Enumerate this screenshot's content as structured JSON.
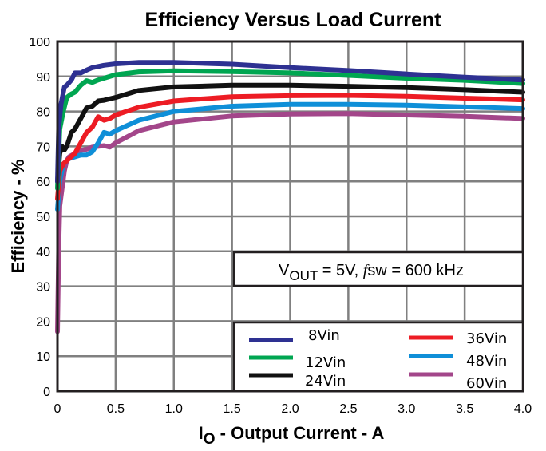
{
  "chart_data": {
    "type": "line",
    "title": "Efficiency Versus Load Current",
    "xlabel_main": "I",
    "xlabel_sub": "O",
    "xlabel_rest": " - Output Current - A",
    "ylabel": "Efficiency - %",
    "xlim": [
      0,
      4.0
    ],
    "ylim": [
      0,
      100
    ],
    "xticks": [
      "0",
      "0.5",
      "1.0",
      "1.5",
      "2.0",
      "2.5",
      "3.0",
      "3.5",
      "4.0"
    ],
    "yticks": [
      "0",
      "10",
      "20",
      "30",
      "40",
      "50",
      "60",
      "70",
      "80",
      "90",
      "100"
    ],
    "grid": true,
    "annotation": {
      "v": "V",
      "v_sub": "OUT",
      "rest": " = 5V, ",
      "f": "f",
      "sw": "sw = 600 kHz"
    },
    "legend_position": "bottom-right",
    "series": [
      {
        "name": "8Vin",
        "color": "#2e3192",
        "x": [
          0,
          0.01,
          0.03,
          0.06,
          0.08,
          0.12,
          0.15,
          0.2,
          0.25,
          0.3,
          0.4,
          0.5,
          0.7,
          1.0,
          1.5,
          2.0,
          2.5,
          3.0,
          3.5,
          4.0
        ],
        "y": [
          60,
          75,
          82,
          87,
          87.5,
          89,
          91,
          91,
          91.8,
          92.5,
          93.2,
          93.6,
          94,
          94,
          93.5,
          92.5,
          91.7,
          90.7,
          89.8,
          89
        ]
      },
      {
        "name": "12Vin",
        "color": "#00a651",
        "x": [
          0,
          0.02,
          0.05,
          0.08,
          0.12,
          0.15,
          0.2,
          0.25,
          0.3,
          0.35,
          0.4,
          0.5,
          0.7,
          1.0,
          1.5,
          2.0,
          2.5,
          3.0,
          3.5,
          4.0
        ],
        "y": [
          58,
          75,
          80,
          84,
          85,
          85.5,
          87.5,
          88.8,
          88.3,
          89,
          89.5,
          90.5,
          91.3,
          91.6,
          91.4,
          91,
          90.3,
          89.5,
          88.9,
          88
        ]
      },
      {
        "name": "24Vin",
        "color": "#111111",
        "x": [
          0,
          0.02,
          0.04,
          0.06,
          0.08,
          0.1,
          0.12,
          0.15,
          0.2,
          0.25,
          0.3,
          0.35,
          0.4,
          0.5,
          0.7,
          1.0,
          1.5,
          2.0,
          2.5,
          3.0,
          3.5,
          4.0
        ],
        "y": [
          60,
          68,
          70,
          69,
          70,
          72,
          74,
          75,
          78,
          81,
          81.5,
          83,
          83.2,
          84,
          86,
          87,
          87.5,
          87.5,
          87.2,
          86.8,
          86.2,
          85.5
        ]
      },
      {
        "name": "36Vin",
        "color": "#ed1c24",
        "x": [
          0,
          0.02,
          0.05,
          0.1,
          0.15,
          0.2,
          0.25,
          0.3,
          0.35,
          0.4,
          0.45,
          0.5,
          0.7,
          1.0,
          1.5,
          2.0,
          2.5,
          3.0,
          3.5,
          4.0
        ],
        "y": [
          55,
          63,
          65,
          66.5,
          68,
          71,
          74,
          75.5,
          78.5,
          77.5,
          78,
          79,
          81.2,
          83,
          84.2,
          84.5,
          84.6,
          84.3,
          83.8,
          83.3
        ]
      },
      {
        "name": "48Vin",
        "color": "#0f8fd8",
        "x": [
          0,
          0.02,
          0.05,
          0.1,
          0.15,
          0.2,
          0.25,
          0.3,
          0.35,
          0.4,
          0.45,
          0.5,
          0.7,
          1.0,
          1.5,
          2.0,
          2.5,
          3.0,
          3.5,
          4.0
        ],
        "y": [
          52,
          60,
          65,
          66.5,
          67,
          67.5,
          67.5,
          68.5,
          71,
          74,
          73.5,
          74.5,
          77.5,
          80,
          81.5,
          82,
          82,
          81.8,
          81.3,
          80.8
        ]
      },
      {
        "name": "60Vin",
        "color": "#a3468a",
        "x": [
          0,
          0.01,
          0.02,
          0.04,
          0.06,
          0.08,
          0.1,
          0.15,
          0.2,
          0.25,
          0.3,
          0.35,
          0.4,
          0.45,
          0.5,
          0.7,
          1.0,
          1.5,
          2.0,
          2.5,
          3.0,
          3.5,
          4.0
        ],
        "y": [
          17,
          40,
          53,
          58,
          63,
          66,
          67,
          68,
          68.8,
          69.2,
          69.8,
          70,
          70.2,
          69.8,
          71,
          74.5,
          77,
          78.7,
          79.3,
          79.4,
          79,
          78.6,
          78
        ]
      }
    ]
  }
}
